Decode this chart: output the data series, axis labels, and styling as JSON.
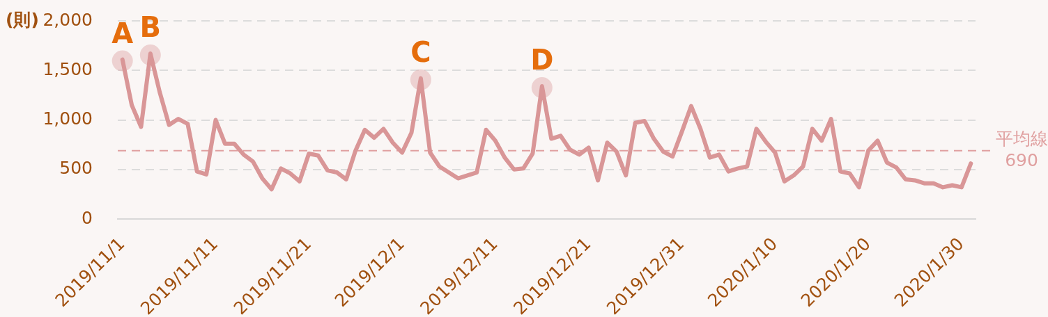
{
  "chart_data": {
    "type": "line",
    "ylabel": "(則)",
    "color": "#d99697",
    "marker": "none",
    "line_style": "solid",
    "grid": "y",
    "x": [
      "2019-11-01",
      "2019-11-02",
      "2019-11-03",
      "2019-11-04",
      "2019-11-05",
      "2019-11-06",
      "2019-11-07",
      "2019-11-08",
      "2019-11-09",
      "2019-11-10",
      "2019-11-11",
      "2019-11-12",
      "2019-11-13",
      "2019-11-14",
      "2019-11-15",
      "2019-11-16",
      "2019-11-17",
      "2019-11-18",
      "2019-11-19",
      "2019-11-20",
      "2019-11-21",
      "2019-11-22",
      "2019-11-23",
      "2019-11-24",
      "2019-11-25",
      "2019-11-26",
      "2019-11-27",
      "2019-11-28",
      "2019-11-29",
      "2019-11-30",
      "2019-12-01",
      "2019-12-02",
      "2019-12-03",
      "2019-12-04",
      "2019-12-05",
      "2019-12-06",
      "2019-12-07",
      "2019-12-08",
      "2019-12-09",
      "2019-12-10",
      "2019-12-11",
      "2019-12-12",
      "2019-12-13",
      "2019-12-14",
      "2019-12-15",
      "2019-12-16",
      "2019-12-17",
      "2019-12-18",
      "2019-12-19",
      "2019-12-20",
      "2019-12-21",
      "2019-12-22",
      "2019-12-23",
      "2019-12-24",
      "2019-12-25",
      "2019-12-26",
      "2019-12-27",
      "2019-12-28",
      "2019-12-29",
      "2019-12-30",
      "2019-12-31",
      "2020-01-01",
      "2020-01-02",
      "2020-01-03",
      "2020-01-04",
      "2020-01-05",
      "2020-01-06",
      "2020-01-07",
      "2020-01-08",
      "2020-01-09",
      "2020-01-10",
      "2020-01-11",
      "2020-01-12",
      "2020-01-13",
      "2020-01-14",
      "2020-01-15",
      "2020-01-16",
      "2020-01-17",
      "2020-01-18",
      "2020-01-19",
      "2020-01-20",
      "2020-01-21",
      "2020-01-22",
      "2020-01-23",
      "2020-01-24",
      "2020-01-25",
      "2020-01-26",
      "2020-01-27",
      "2020-01-28",
      "2020-01-29",
      "2020-01-30",
      "2020-01-31"
    ],
    "values": [
      1610,
      1150,
      930,
      1670,
      1280,
      950,
      1010,
      960,
      480,
      450,
      1000,
      760,
      760,
      650,
      580,
      410,
      300,
      510,
      460,
      380,
      660,
      640,
      490,
      470,
      400,
      690,
      900,
      820,
      910,
      770,
      670,
      870,
      1420,
      670,
      530,
      470,
      410,
      440,
      470,
      900,
      790,
      620,
      500,
      510,
      660,
      1340,
      810,
      840,
      700,
      650,
      720,
      390,
      770,
      680,
      440,
      970,
      990,
      810,
      680,
      630,
      880,
      1140,
      910,
      620,
      650,
      480,
      510,
      530,
      910,
      780,
      670,
      380,
      440,
      530,
      910,
      790,
      1010,
      480,
      460,
      320,
      690,
      790,
      570,
      520,
      400,
      390,
      360,
      360,
      320,
      340,
      320,
      560
    ],
    "xlim": [
      "2019-10-31T12:00",
      "2020-01-31T12:00"
    ],
    "xticks": [
      {
        "value": "2019-11-01",
        "label": "2019/11/1"
      },
      {
        "value": "2019-11-11",
        "label": "2019/11/11"
      },
      {
        "value": "2019-11-21",
        "label": "2019/11/21"
      },
      {
        "value": "2019-12-01",
        "label": "2019/12/1"
      },
      {
        "value": "2019-12-11",
        "label": "2019/12/11"
      },
      {
        "value": "2019-12-21",
        "label": "2019/12/21"
      },
      {
        "value": "2019-12-31",
        "label": "2019/12/31"
      },
      {
        "value": "2020-01-10",
        "label": "2020/1/10"
      },
      {
        "value": "2020-01-20",
        "label": "2020/1/20"
      },
      {
        "value": "2020-01-30",
        "label": "2020/1/30"
      }
    ],
    "ylim": [
      0,
      2000
    ],
    "yticks": [
      0,
      500,
      {
        "value": 1000,
        "label": "1,000"
      },
      {
        "value": 1500,
        "label": "1,500"
      },
      {
        "value": 2000,
        "label": "2,000"
      }
    ],
    "ref_lines": [
      {
        "axis": "y",
        "value": 690,
        "label": "平均線\n690",
        "color": "#e0a0a0",
        "line_style": "dashed"
      }
    ],
    "annotations": [
      {
        "text": "A",
        "x": "2019-11-01",
        "y": 1610
      },
      {
        "text": "B",
        "x": "2019-11-04",
        "y": 1670
      },
      {
        "text": "C",
        "x": "2019-12-03",
        "y": 1420
      },
      {
        "text": "D",
        "x": "2019-12-16",
        "y": 1340
      }
    ]
  }
}
